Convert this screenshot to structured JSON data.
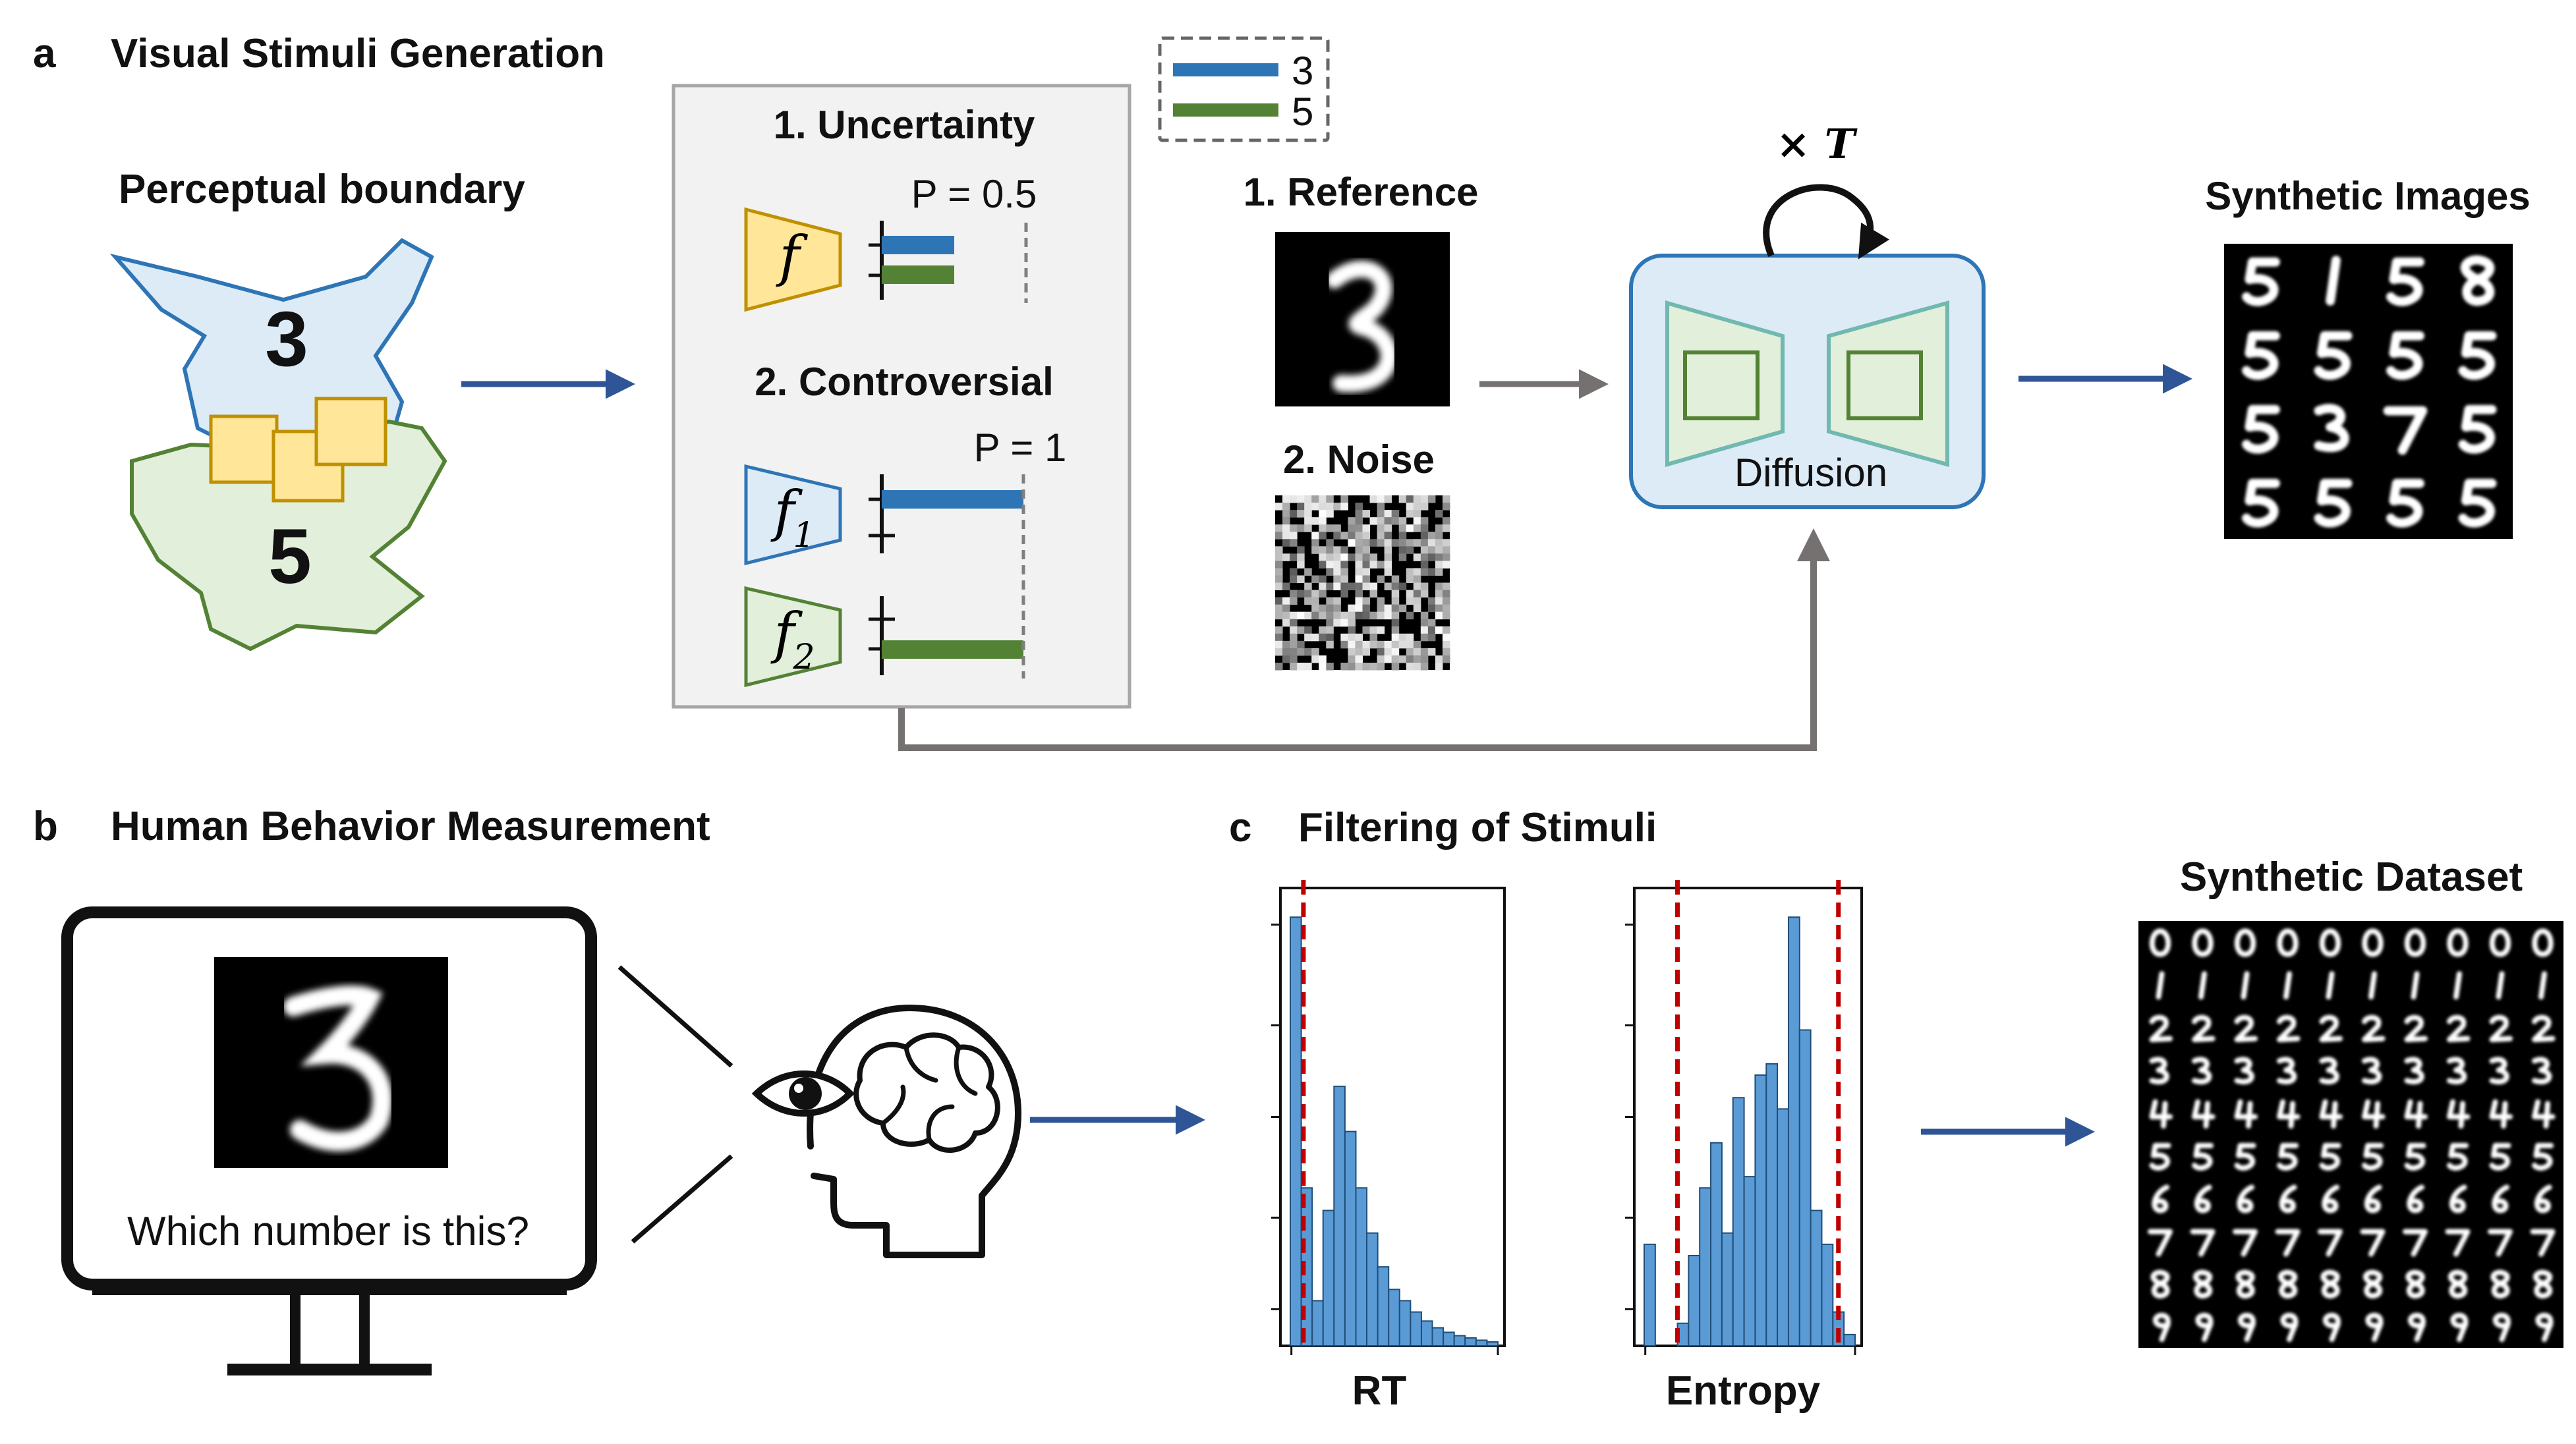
{
  "panel_a": {
    "letter": "a",
    "title": "Visual Stimuli Generation",
    "perceptual": {
      "title": "Perceptual boundary",
      "class_top": "3",
      "class_bottom": "5"
    },
    "legend": {
      "label_a": "3",
      "label_b": "5"
    },
    "uncertainty": {
      "title": "1. Uncertainty",
      "threshold": "P = 0.5",
      "model": "f"
    },
    "controversial": {
      "title": "2. Controversial",
      "threshold": "P = 1",
      "model_1": "f",
      "model_1_sub": "1",
      "model_2": "f",
      "model_2_sub": "2"
    },
    "reference_title": "1. Reference",
    "noise_title": "2. Noise",
    "diffusion": {
      "label": "Diffusion",
      "loop_label": "× T"
    },
    "synthetic_images_title": "Synthetic Images",
    "colors": {
      "class3": "#2E75B6",
      "class5": "#548235",
      "arrow": "#2F5597",
      "gray_arrow": "#767171"
    }
  },
  "panel_b": {
    "letter": "b",
    "title": "Human Behavior Measurement",
    "question": "Which number is this?"
  },
  "panel_c": {
    "letter": "c",
    "title": "Filtering of Stimuli",
    "synthetic_dataset_title": "Synthetic Dataset"
  },
  "chart_data": [
    {
      "type": "bar",
      "xlabel": "RT",
      "ylabel": "",
      "values": [
        38,
        14,
        4,
        12,
        23,
        19,
        14,
        10,
        7,
        5,
        4,
        3,
        2.2,
        1.6,
        1.2,
        0.9,
        0.7,
        0.5,
        0.35
      ],
      "thresholds_bin_position": [
        1.2
      ],
      "ylim": [
        0,
        40
      ]
    },
    {
      "type": "bar",
      "xlabel": "Entropy",
      "ylabel": "",
      "values": [
        9,
        0,
        0,
        2,
        8,
        14,
        18,
        10,
        22,
        15,
        24,
        25,
        21,
        38,
        28,
        12,
        9,
        3,
        1
      ],
      "thresholds_bin_position": [
        3.0,
        17.5
      ],
      "ylim": [
        0,
        40
      ]
    }
  ]
}
